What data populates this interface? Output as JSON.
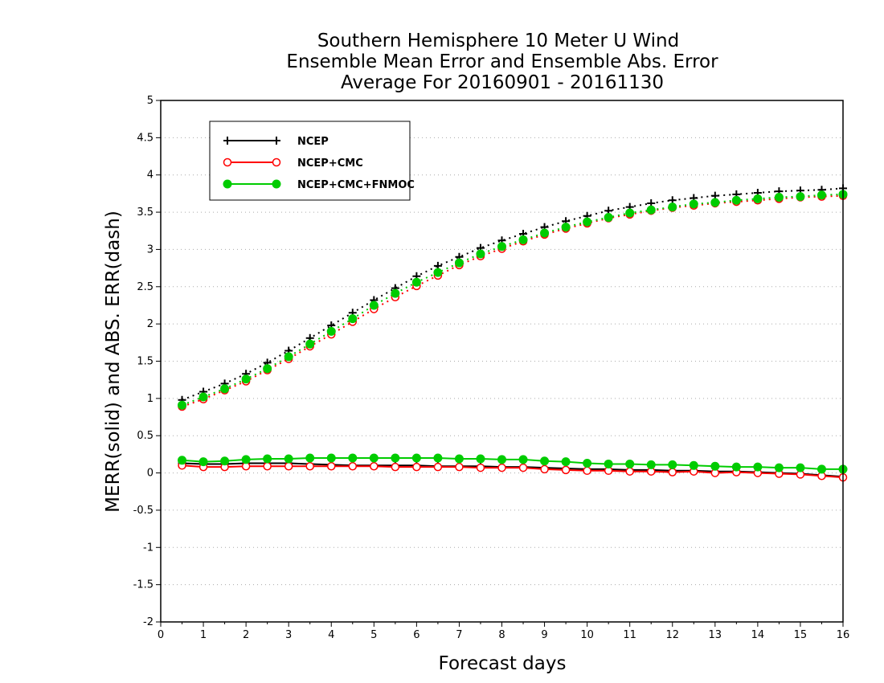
{
  "chart_data": {
    "type": "line",
    "title_lines": [
      "Southern Hemisphere 10 Meter U Wind",
      "Ensemble Mean Error and Ensemble Abs. Error",
      "Average For 20160901 - 20161130"
    ],
    "xlabel": "Forecast days",
    "ylabel": "MERR(solid) and ABS. ERR(dash)",
    "xlim": [
      0,
      16
    ],
    "ylim": [
      -2,
      5
    ],
    "xticks": [
      "0",
      "1",
      "2",
      "3",
      "4",
      "5",
      "6",
      "7",
      "8",
      "9",
      "10",
      "11",
      "12",
      "13",
      "14",
      "15",
      "16"
    ],
    "yticks": [
      "5",
      "4.5",
      "4",
      "3.5",
      "3",
      "2.5",
      "2",
      "1.5",
      "1",
      "0.5",
      "0",
      "-0.5",
      "-1",
      "-1.5",
      "-2"
    ],
    "grid": "horizontal dotted",
    "legend_position": "top-left",
    "x": [
      0.5,
      1,
      1.5,
      2,
      2.5,
      3,
      3.5,
      4,
      4.5,
      5,
      5.5,
      6,
      6.5,
      7,
      7.5,
      8,
      8.5,
      9,
      9.5,
      10,
      10.5,
      11,
      11.5,
      12,
      12.5,
      13,
      13.5,
      14,
      14.5,
      15,
      15.5,
      16
    ],
    "series": [
      {
        "name": "NCEP",
        "color": "#000000",
        "marker": "plus",
        "merr": [
          0.13,
          0.12,
          0.12,
          0.13,
          0.13,
          0.13,
          0.12,
          0.11,
          0.1,
          0.1,
          0.1,
          0.1,
          0.09,
          0.09,
          0.09,
          0.08,
          0.08,
          0.07,
          0.06,
          0.05,
          0.05,
          0.04,
          0.04,
          0.03,
          0.03,
          0.02,
          0.02,
          0.01,
          0.0,
          -0.01,
          -0.03,
          -0.05
        ],
        "abs_err": [
          0.98,
          1.09,
          1.2,
          1.33,
          1.48,
          1.64,
          1.81,
          1.98,
          2.15,
          2.32,
          2.48,
          2.64,
          2.78,
          2.9,
          3.02,
          3.12,
          3.21,
          3.3,
          3.38,
          3.45,
          3.52,
          3.57,
          3.62,
          3.66,
          3.69,
          3.72,
          3.74,
          3.76,
          3.78,
          3.79,
          3.8,
          3.82
        ]
      },
      {
        "name": "NCEP+CMC",
        "color": "#ff0000",
        "marker": "open-circle",
        "merr": [
          0.1,
          0.08,
          0.08,
          0.09,
          0.09,
          0.09,
          0.09,
          0.09,
          0.09,
          0.09,
          0.08,
          0.08,
          0.08,
          0.08,
          0.07,
          0.07,
          0.07,
          0.05,
          0.04,
          0.03,
          0.03,
          0.02,
          0.02,
          0.01,
          0.02,
          0.0,
          0.01,
          0.0,
          -0.01,
          -0.02,
          -0.04,
          -0.06
        ],
        "abs_err": [
          0.89,
          0.99,
          1.11,
          1.23,
          1.38,
          1.53,
          1.7,
          1.86,
          2.03,
          2.2,
          2.36,
          2.51,
          2.65,
          2.79,
          2.91,
          3.01,
          3.11,
          3.2,
          3.28,
          3.35,
          3.42,
          3.47,
          3.52,
          3.56,
          3.59,
          3.62,
          3.64,
          3.66,
          3.68,
          3.7,
          3.71,
          3.72
        ]
      },
      {
        "name": "NCEP+CMC+FNMOC",
        "color": "#00cc00",
        "marker": "filled-circle",
        "merr": [
          0.17,
          0.15,
          0.16,
          0.18,
          0.19,
          0.19,
          0.2,
          0.2,
          0.2,
          0.2,
          0.2,
          0.2,
          0.2,
          0.19,
          0.19,
          0.18,
          0.18,
          0.16,
          0.15,
          0.13,
          0.12,
          0.12,
          0.11,
          0.11,
          0.1,
          0.09,
          0.08,
          0.08,
          0.07,
          0.07,
          0.05,
          0.05
        ],
        "abs_err": [
          0.91,
          1.02,
          1.13,
          1.26,
          1.4,
          1.56,
          1.73,
          1.9,
          2.07,
          2.25,
          2.41,
          2.56,
          2.69,
          2.82,
          2.94,
          3.04,
          3.13,
          3.22,
          3.3,
          3.37,
          3.43,
          3.49,
          3.53,
          3.57,
          3.61,
          3.63,
          3.66,
          3.68,
          3.7,
          3.71,
          3.73,
          3.74
        ]
      }
    ]
  }
}
